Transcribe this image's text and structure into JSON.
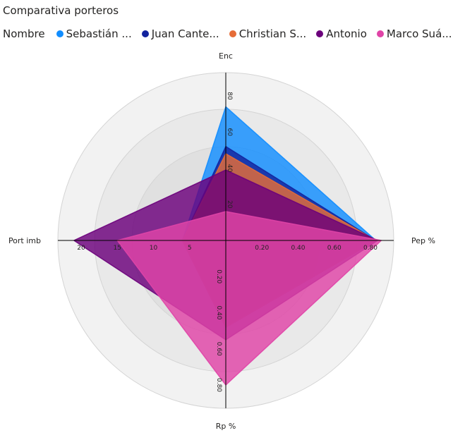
{
  "title": "Comparativa porteros",
  "legend_label": "Nombre",
  "chart_data": {
    "type": "radar",
    "title": "Comparativa porteros",
    "axes": [
      {
        "name": "Enc",
        "max": 80,
        "ticks": [
          20,
          40,
          60,
          80
        ],
        "tick_labels": [
          "20",
          "40",
          "60",
          "80"
        ]
      },
      {
        "name": "Pep %",
        "max": 0.8,
        "ticks": [
          0.2,
          0.4,
          0.6,
          0.8
        ],
        "tick_labels": [
          "0.20",
          "0.40",
          "0.60",
          "0.80"
        ]
      },
      {
        "name": "Rp %",
        "max": 0.8,
        "ticks": [
          0.2,
          0.4,
          0.6,
          0.8
        ],
        "tick_labels": [
          "0.20",
          "0.40",
          "0.60",
          "0.80"
        ]
      },
      {
        "name": "Port imb",
        "max": 20,
        "ticks": [
          5,
          10,
          15,
          20
        ],
        "tick_labels": [
          "5",
          "10",
          "15",
          "20"
        ]
      }
    ],
    "series": [
      {
        "name": "Sebastián ...",
        "color": "#118DFF",
        "values": [
          74,
          0.83,
          0.48,
          6
        ]
      },
      {
        "name": "Juan Cante...",
        "color": "#12239E",
        "values": [
          52,
          0.83,
          0.48,
          6
        ]
      },
      {
        "name": "Christian S...",
        "color": "#E66C37",
        "values": [
          48,
          0.83,
          0.48,
          6
        ]
      },
      {
        "name": "Antonio",
        "color": "#6B007B",
        "values": [
          39,
          0.84,
          0.55,
          21
        ]
      },
      {
        "name": "Marco Suá...",
        "color": "#E044A7",
        "values": [
          16,
          0.86,
          0.8,
          15
        ]
      }
    ]
  }
}
